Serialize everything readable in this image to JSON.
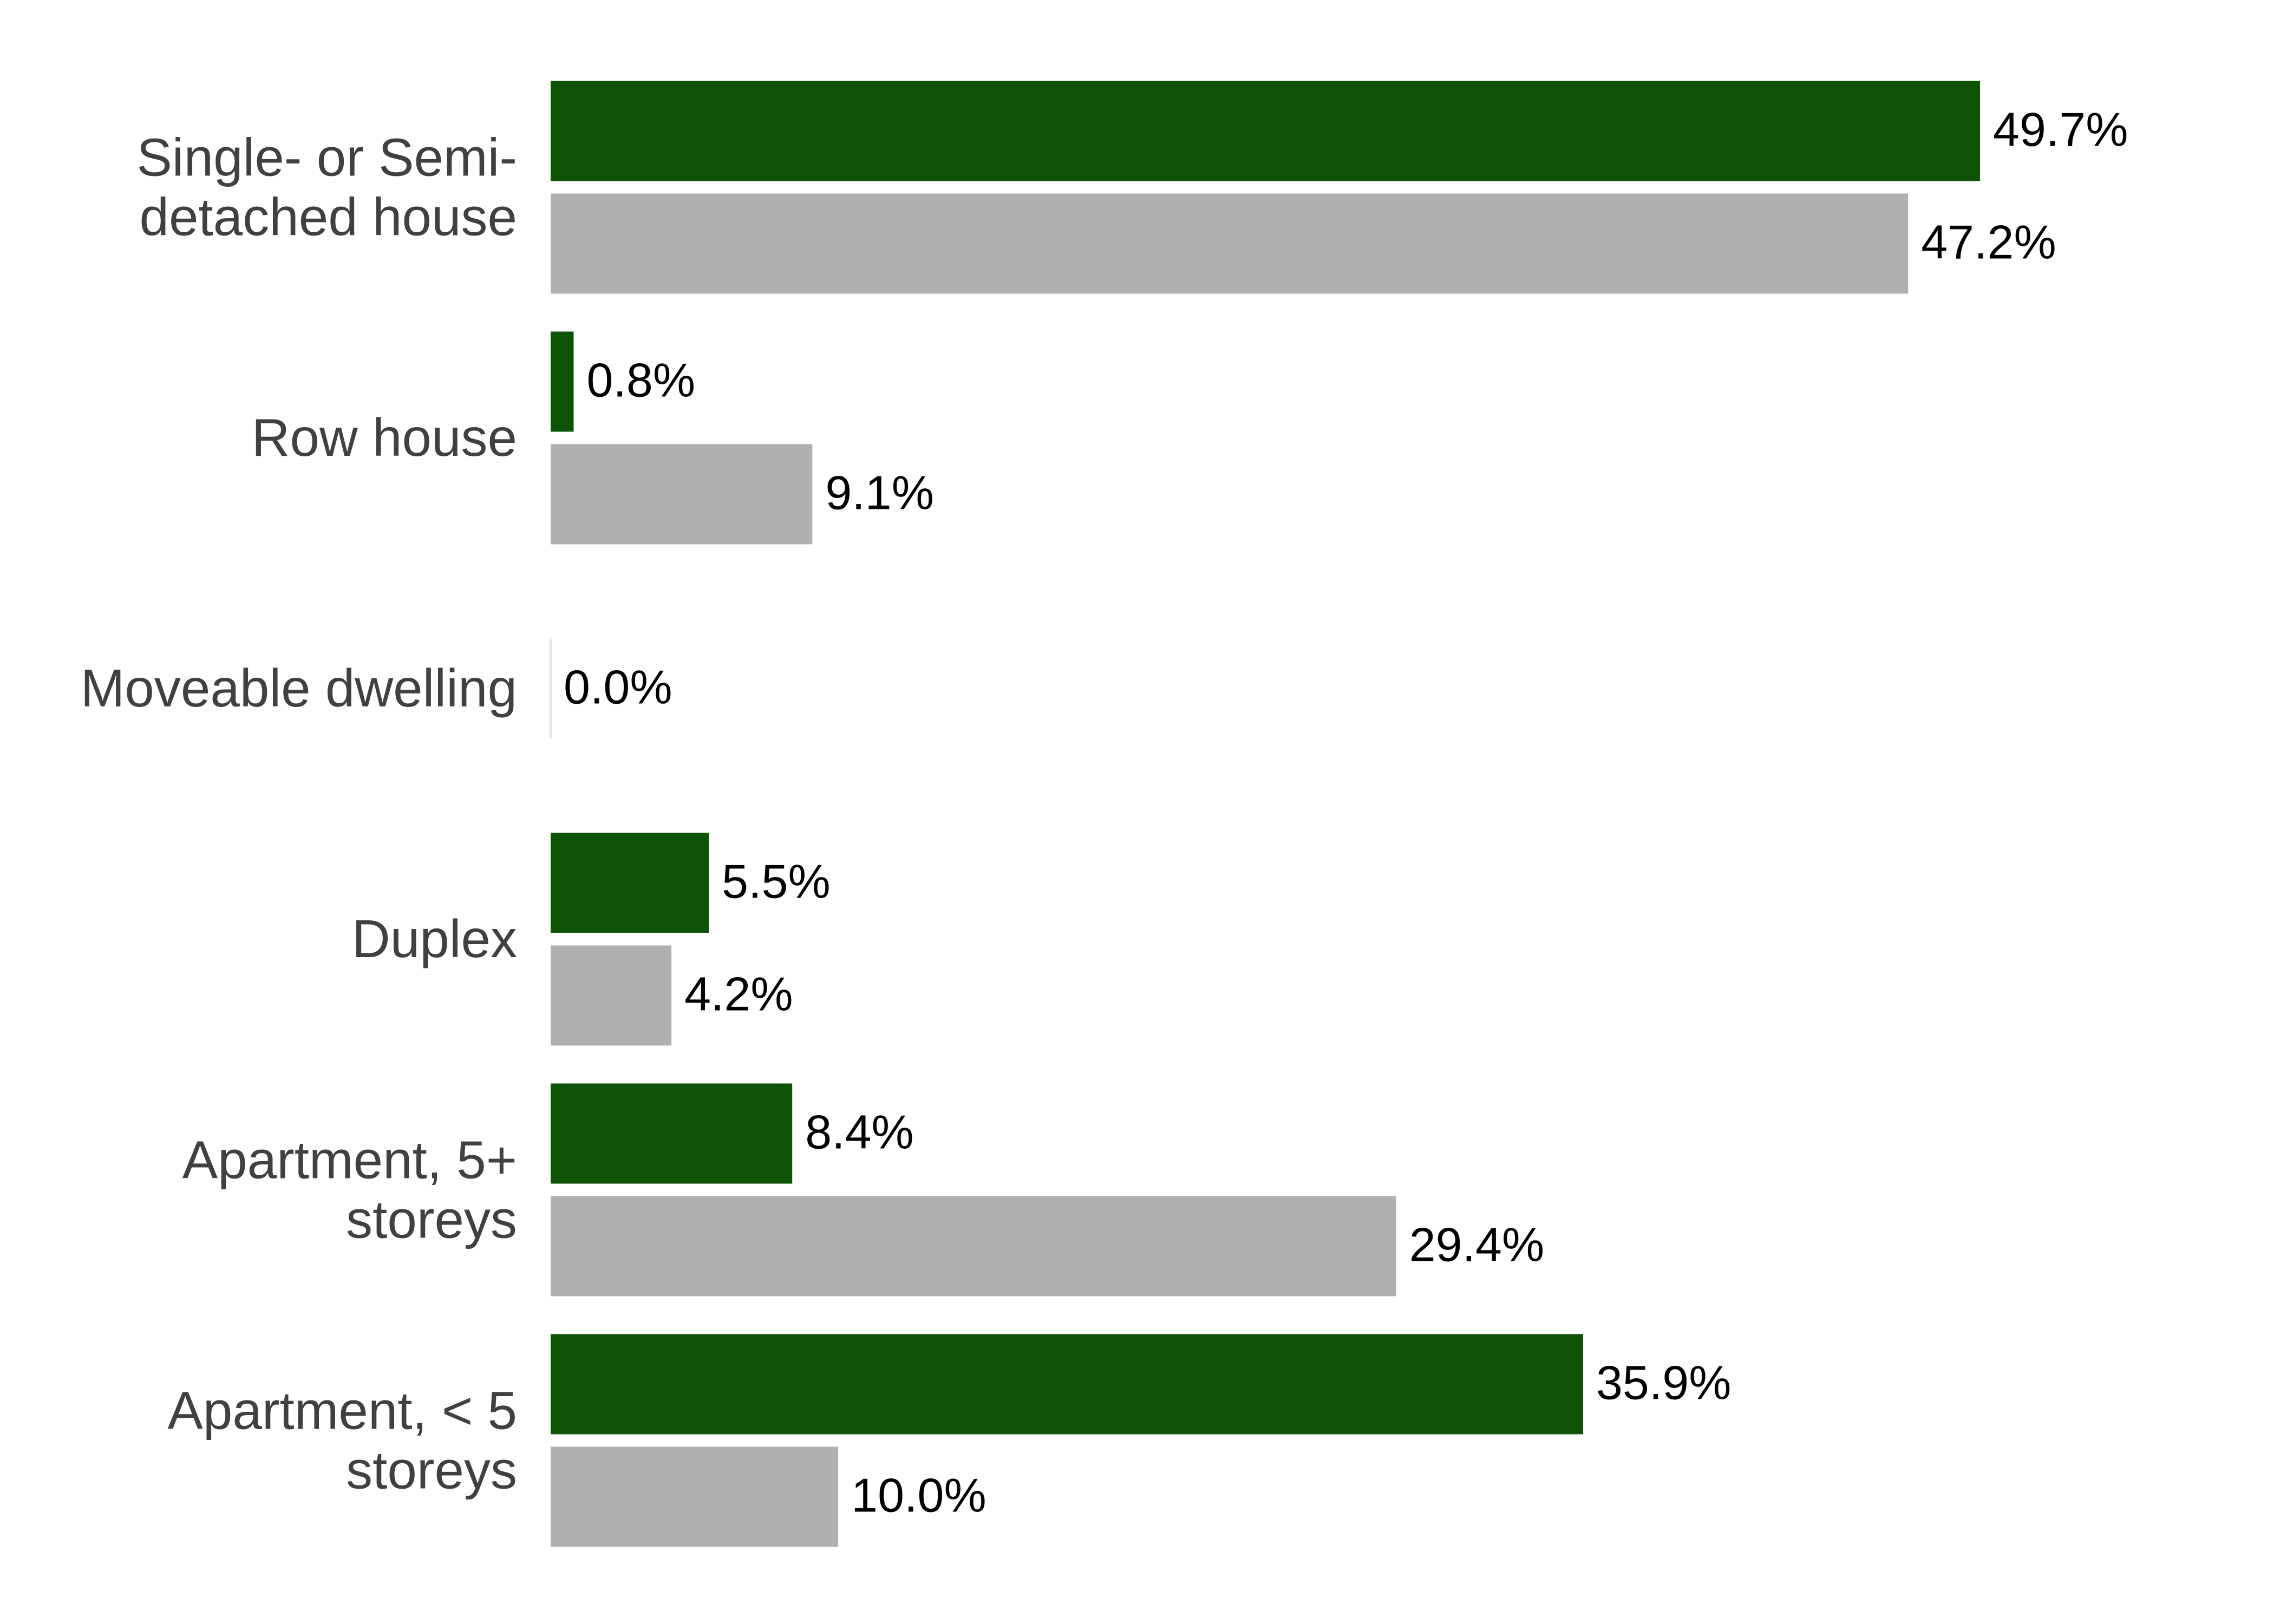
{
  "chart_data": {
    "type": "barh",
    "categories": [
      "Single- or Semi-\ndetached house",
      "Row house",
      "Moveable dwelling",
      "Duplex",
      "Apartment, 5+\nstoreys",
      "Apartment, < 5\nstoreys"
    ],
    "series": [
      {
        "color": "#0d5205",
        "values": [
          49.7,
          0.8,
          0.0,
          5.5,
          8.4,
          35.9
        ],
        "value_labels": [
          "49.7%",
          "0.8%",
          "0.0%",
          "5.5%",
          "8.4%",
          "35.9%"
        ]
      },
      {
        "color": "#b0b0b0",
        "values": [
          47.2,
          9.1,
          null,
          4.2,
          29.4,
          10.0
        ],
        "value_labels": [
          "47.2%",
          "9.1%",
          null,
          "4.2%",
          "29.4%",
          "10.0%"
        ]
      }
    ]
  }
}
